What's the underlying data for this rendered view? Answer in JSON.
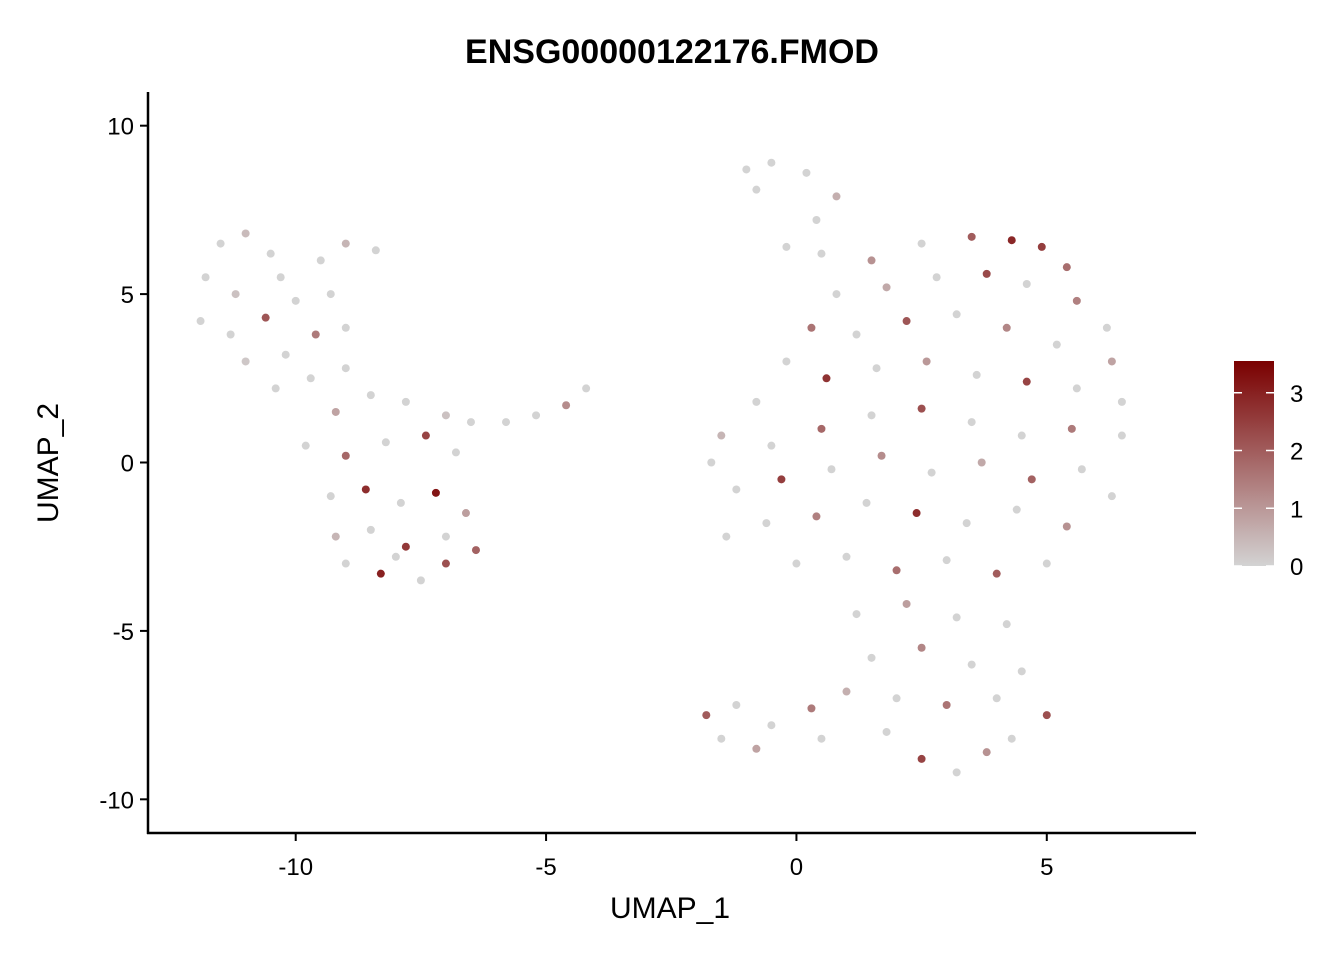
{
  "chart_data": {
    "type": "scatter",
    "title": "ENSG00000122176.FMOD",
    "x_label": "UMAP_1",
    "y_label": "UMAP_2",
    "xlim": [
      -12.95,
      7.98
    ],
    "ylim": [
      -11,
      11
    ],
    "xticks": [
      -10,
      -5,
      0,
      5
    ],
    "yticks": [
      -10,
      -5,
      0,
      5,
      10
    ],
    "color_low": "#d3d3d3",
    "color_high": "#7a0000",
    "colorbar_lim": [
      0,
      3.55
    ],
    "colorbar_ticks": [
      0,
      1,
      2,
      3
    ],
    "x": [
      -11.5,
      -11.0,
      -10.5,
      -11.8,
      -11.2,
      -10.3,
      -9.5,
      -9.0,
      -8.4,
      -11.9,
      -11.3,
      -10.6,
      -10.0,
      -9.3,
      -11.0,
      -10.2,
      -9.6,
      -9.0,
      -10.4,
      -9.7,
      -9.0,
      -9.2,
      -8.5,
      -7.8,
      -7.0,
      -6.5,
      -5.8,
      -5.2,
      -4.6,
      -4.2,
      -9.8,
      -9.0,
      -8.2,
      -7.4,
      -6.8,
      -9.3,
      -8.6,
      -7.9,
      -7.2,
      -6.6,
      -9.2,
      -8.5,
      -7.8,
      -7.0,
      -6.4,
      -9.0,
      -8.3,
      -7.5,
      -7.0,
      -8.0,
      -1.0,
      -0.5,
      0.2,
      0.8,
      -0.8,
      0.4,
      -0.2,
      0.5,
      1.5,
      2.5,
      3.5,
      4.3,
      4.9,
      5.4,
      0.8,
      1.8,
      2.8,
      3.8,
      4.6,
      5.6,
      6.2,
      0.3,
      1.2,
      2.2,
      3.2,
      4.2,
      5.2,
      6.3,
      -0.2,
      0.6,
      1.6,
      2.6,
      3.6,
      4.6,
      5.6,
      6.5,
      -0.8,
      -1.5,
      -0.5,
      0.5,
      1.5,
      2.5,
      3.5,
      4.5,
      5.5,
      6.5,
      -1.7,
      -1.2,
      -0.3,
      0.7,
      1.7,
      2.7,
      3.7,
      4.7,
      5.7,
      6.3,
      -1.4,
      -0.6,
      0.4,
      1.4,
      2.4,
      3.4,
      4.4,
      5.4,
      0.0,
      1.0,
      2.0,
      3.0,
      4.0,
      5.0,
      1.2,
      2.2,
      3.2,
      4.2,
      1.5,
      2.5,
      3.5,
      4.5,
      1.0,
      2.0,
      3.0,
      4.0,
      5.0,
      -1.8,
      -1.2,
      -0.5,
      0.3,
      -1.5,
      -0.8,
      0.5,
      1.8,
      2.5,
      3.2,
      3.8,
      4.3
    ],
    "y": [
      6.5,
      6.8,
      6.2,
      5.5,
      5.0,
      5.5,
      6.0,
      6.5,
      6.3,
      4.2,
      3.8,
      4.3,
      4.8,
      5.0,
      3.0,
      3.2,
      3.8,
      4.0,
      2.2,
      2.5,
      2.8,
      1.5,
      2.0,
      1.8,
      1.4,
      1.2,
      1.2,
      1.4,
      1.7,
      2.2,
      0.5,
      0.2,
      0.6,
      0.8,
      0.3,
      -1.0,
      -0.8,
      -1.2,
      -0.9,
      -1.5,
      -2.2,
      -2.0,
      -2.5,
      -2.2,
      -2.6,
      -3.0,
      -3.3,
      -3.5,
      -3.0,
      -2.8,
      8.7,
      8.9,
      8.6,
      7.9,
      8.1,
      7.2,
      6.4,
      6.2,
      6.0,
      6.5,
      6.7,
      6.6,
      6.4,
      5.8,
      5.0,
      5.2,
      5.5,
      5.6,
      5.3,
      4.8,
      4.0,
      4.0,
      3.8,
      4.2,
      4.4,
      4.0,
      3.5,
      3.0,
      3.0,
      2.5,
      2.8,
      3.0,
      2.6,
      2.4,
      2.2,
      1.8,
      1.8,
      0.8,
      0.5,
      1.0,
      1.4,
      1.6,
      1.2,
      0.8,
      1.0,
      0.8,
      0,
      -0.8,
      -0.5,
      -0.2,
      0.2,
      -0.3,
      0.0,
      -0.5,
      -0.2,
      -1.0,
      -2.2,
      -1.8,
      -1.6,
      -1.2,
      -1.5,
      -1.8,
      -1.4,
      -1.9,
      -3.0,
      -2.8,
      -3.2,
      -2.9,
      -3.3,
      -3.0,
      -4.5,
      -4.2,
      -4.6,
      -4.8,
      -5.8,
      -5.5,
      -6.0,
      -6.2,
      -6.8,
      -7.0,
      -7.2,
      -7.0,
      -7.5,
      -7.5,
      -7.2,
      -7.8,
      -7.3,
      -8.2,
      -8.5,
      -8.2,
      -8.0,
      -8.8,
      -9.2,
      -8.6,
      -8.2
    ],
    "expression": [
      0,
      0.4,
      0,
      0,
      0.3,
      0,
      0,
      0.5,
      0,
      0,
      0,
      2.1,
      0,
      0,
      0.2,
      0,
      1.5,
      0,
      0,
      0,
      0,
      0.8,
      0,
      0,
      0.3,
      0,
      0,
      0,
      1.2,
      0,
      0,
      1.8,
      0,
      2.4,
      0,
      0,
      2.8,
      0,
      3.2,
      0.9,
      0.5,
      0,
      2.6,
      0,
      1.9,
      0,
      3.0,
      0,
      2.2,
      0,
      0,
      0,
      0,
      0.6,
      0,
      0,
      0,
      0,
      1.1,
      0,
      2.0,
      2.9,
      2.5,
      1.7,
      0,
      0.7,
      0,
      2.3,
      0,
      1.4,
      0,
      1.6,
      0,
      2.1,
      0,
      1.3,
      0,
      0.8,
      0,
      2.7,
      0,
      1.0,
      0,
      2.4,
      0,
      0,
      0,
      0.5,
      0,
      1.8,
      0,
      2.2,
      0,
      0,
      1.5,
      0,
      0,
      0,
      2.5,
      0,
      1.2,
      0,
      0.7,
      1.9,
      0,
      0,
      0,
      0,
      1.4,
      0,
      2.8,
      0,
      0,
      1.1,
      0,
      0,
      1.7,
      0,
      2.0,
      0,
      0,
      0.9,
      0,
      0,
      0,
      1.3,
      0,
      0,
      0.6,
      0,
      1.6,
      0,
      2.2,
      2.0,
      0,
      0,
      1.5,
      0,
      0.8,
      0,
      0,
      2.4,
      0,
      1.1,
      0
    ]
  }
}
